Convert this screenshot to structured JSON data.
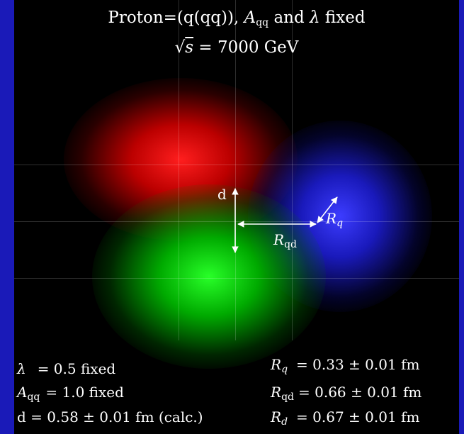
{
  "title": {
    "line1_prefix": "Proton=(q(qq)), ",
    "line1_A": "A",
    "line1_A_sub": "qq",
    "line1_mid": " and ",
    "line1_lambda": "λ",
    "line1_suffix": " fixed",
    "line2_sqrt": "√",
    "line2_s": "s",
    "line2_rest": " = 7000 GeV"
  },
  "diagram": {
    "d_label": "d",
    "Rq_label": "R",
    "Rq_sub": "q",
    "Rqd_label": "R",
    "Rqd_sub": "qd"
  },
  "params_left": {
    "lambda_sym": "λ",
    "lambda_val": "= 0.5 fixed",
    "A_sym": "A",
    "A_sub": "qq",
    "A_val": "= 1.0 fixed",
    "d_text": "d = 0.58 ± 0.01 fm (calc.)"
  },
  "params_right": {
    "Rq_sym": "R",
    "Rq_sub": "q",
    "Rq_val": "= 0.33 ± 0.01 fm",
    "Rqd_sym": "R",
    "Rqd_sub": "qd",
    "Rqd_val": "= 0.66 ± 0.01 fm",
    "Rd_sym": "R",
    "Rd_sub": "d",
    "Rd_val": "= 0.67 ± 0.01 fm"
  },
  "colors": {
    "frame": "#1a1ab8",
    "red_quark": "#ff1e1e",
    "green_diquark": "#28ff28",
    "blue_quark": "#3c3cff"
  }
}
